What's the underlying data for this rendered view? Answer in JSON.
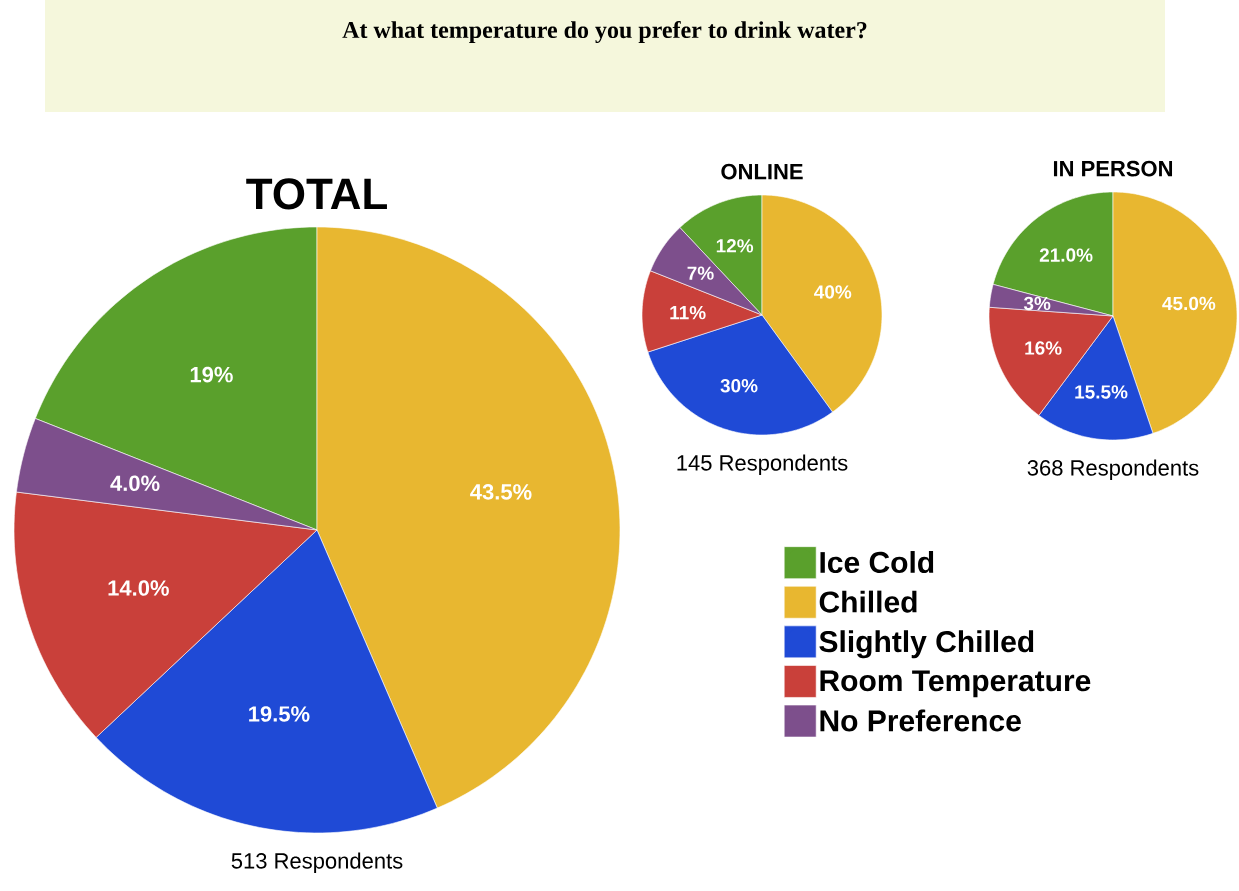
{
  "chart_data": [
    {
      "type": "other",
      "title": "At what temperature do you prefer to drink water?"
    },
    {
      "type": "pie",
      "title": "TOTAL",
      "categories": [
        null,
        null,
        null,
        null,
        null
      ],
      "values": [
        19,
        43.5,
        19.5,
        14,
        4
      ],
      "value_labels": [
        "19%",
        "43.5%",
        "19.5%",
        "14.0%",
        "4.0%"
      ],
      "colors": [
        "#5aa02c",
        "#e8b730",
        "#1f4ad6",
        "#c9403a",
        "#7d4f8c"
      ],
      "annotations": [
        "513 Respondents"
      ]
    },
    {
      "type": "pie",
      "title": "ONLINE",
      "categories": [
        null,
        null,
        null,
        null,
        null
      ],
      "values": [
        12,
        40,
        30,
        11,
        7
      ],
      "value_labels": [
        "12%",
        "40%",
        "30%",
        "11%",
        "7%"
      ],
      "colors": [
        "#5aa02c",
        "#e8b730",
        "#1f4ad6",
        "#c9403a",
        "#7d4f8c"
      ],
      "annotations": [
        "145 Respondents"
      ]
    },
    {
      "type": "pie",
      "title": "IN PERSON",
      "categories": [
        "Ice Cold",
        "Chilled",
        "Slightly Chilled",
        "Room Temperature",
        "No Preference"
      ],
      "values": [
        21,
        45,
        15.5,
        16,
        3
      ],
      "value_labels": [
        "21.0%",
        "45.0%",
        "15.5%",
        "16%",
        "3%"
      ],
      "colors": [
        "#5aa02c",
        "#e8b730",
        "#1f4ad6",
        "#c9403a",
        "#7d4f8c"
      ],
      "annotations": [
        "368 Respondents"
      ],
      "legend": "bottom"
    }
  ]
}
